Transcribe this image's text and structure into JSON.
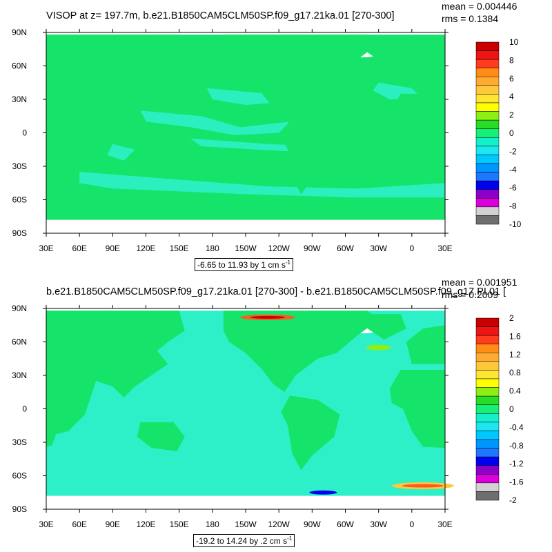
{
  "chart_data": [
    {
      "type": "heatmap",
      "title": "VISOP at z= 197.7m, b.e21.B1850CAM5CLM50SP.f09_g17.21ka.01 [270-300]",
      "stats": {
        "mean": "mean = 0.004446",
        "rms": "rms = 0.1384"
      },
      "range_note": {
        "text": "-6.65 to 11.93 by 1 cm s",
        "sup": "-1"
      },
      "x_ticks": [
        "30E",
        "60E",
        "90E",
        "120E",
        "150E",
        "180",
        "150W",
        "120W",
        "90W",
        "60W",
        "30W",
        "0",
        "30E"
      ],
      "y_ticks": [
        "90N",
        "60N",
        "30N",
        "0",
        "30S",
        "60S",
        "90S"
      ],
      "colorbar": {
        "labels": [
          "10",
          "8",
          "6",
          "4",
          "2",
          "0",
          "-2",
          "-4",
          "-6",
          "-8",
          "-10"
        ],
        "colors": [
          "#c80000",
          "#f01414",
          "#ff3c1e",
          "#ff8c14",
          "#ffaa32",
          "#ffc83c",
          "#ffe632",
          "#ffff00",
          "#8cf014",
          "#28dc28",
          "#14f078",
          "#14f0c8",
          "#1ee6f0",
          "#00c8ff",
          "#0096ff",
          "#1e78ff",
          "#0000f0",
          "#8c00c8",
          "#dc00dc",
          "#d2d2d2",
          "#6e6e6e"
        ]
      },
      "field": {
        "ocean_color": "#16e46a",
        "anomaly_color": "#2ef0c8",
        "land_color": "#2ef0c8"
      }
    },
    {
      "type": "heatmap",
      "title": "b.e21.B1850CAM5CLM50SP.f09_g17.21ka.01 [270-300] - b.e21.B1850CAM5CLM50SP.f09_g17.PI.01 [",
      "stats": {
        "mean": "mean = 0.001951",
        "rms": "rms = 0.2009"
      },
      "range_note": {
        "text": "-19.2 to 14.24 by .2 cm s",
        "sup": "-1"
      },
      "x_ticks": [
        "30E",
        "60E",
        "90E",
        "120E",
        "150E",
        "180",
        "150W",
        "120W",
        "90W",
        "60W",
        "30W",
        "0",
        "30E"
      ],
      "y_ticks": [
        "90N",
        "60N",
        "30N",
        "0",
        "30S",
        "60S",
        "90S"
      ],
      "colorbar": {
        "labels": [
          "2",
          "1.6",
          "1.2",
          "0.8",
          "0.4",
          "0",
          "-0.4",
          "-0.8",
          "-1.2",
          "-1.6",
          "-2"
        ],
        "colors": [
          "#c80000",
          "#f01414",
          "#ff3c1e",
          "#ff8c14",
          "#ffaa32",
          "#ffc83c",
          "#ffe632",
          "#ffff00",
          "#8cf014",
          "#28dc28",
          "#14f078",
          "#14f0c8",
          "#1ee6f0",
          "#00c8ff",
          "#0096ff",
          "#1e78ff",
          "#0000f0",
          "#8c00c8",
          "#dc00dc",
          "#d2d2d2",
          "#6e6e6e"
        ]
      },
      "field": {
        "ocean_color": "#2ef0c8",
        "land_color": "#16e46a"
      }
    }
  ]
}
